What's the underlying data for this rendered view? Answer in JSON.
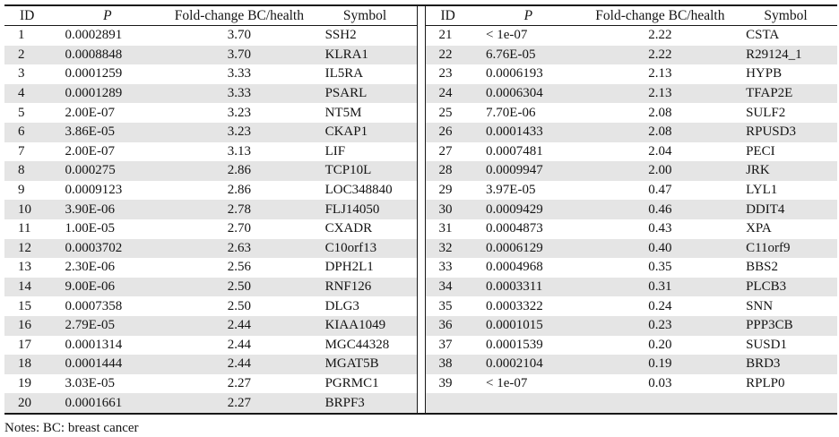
{
  "columns": [
    "ID",
    "P",
    "Fold-change BC/health",
    "Symbol"
  ],
  "left_table": {
    "rows": [
      [
        "1",
        "0.0002891",
        "3.70",
        "SSH2"
      ],
      [
        "2",
        "0.0008848",
        "3.70",
        "KLRA1"
      ],
      [
        "3",
        "0.0001259",
        "3.33",
        "IL5RA"
      ],
      [
        "4",
        "0.0001289",
        "3.33",
        "PSARL"
      ],
      [
        "5",
        "2.00E-07",
        "3.23",
        "NT5M"
      ],
      [
        "6",
        "3.86E-05",
        "3.23",
        "CKAP1"
      ],
      [
        "7",
        "2.00E-07",
        "3.13",
        "LIF"
      ],
      [
        "8",
        "0.000275",
        "2.86",
        "TCP10L"
      ],
      [
        "9",
        "0.0009123",
        "2.86",
        "LOC348840"
      ],
      [
        "10",
        "3.90E-06",
        "2.78",
        "FLJ14050"
      ],
      [
        "11",
        "1.00E-05",
        "2.70",
        "CXADR"
      ],
      [
        "12",
        "0.0003702",
        "2.63",
        "C10orf13"
      ],
      [
        "13",
        "2.30E-06",
        "2.56",
        "DPH2L1"
      ],
      [
        "14",
        "9.00E-06",
        "2.50",
        "RNF126"
      ],
      [
        "15",
        "0.0007358",
        "2.50",
        "DLG3"
      ],
      [
        "16",
        "2.79E-05",
        "2.44",
        "KIAA1049"
      ],
      [
        "17",
        "0.0001314",
        "2.44",
        "MGC44328"
      ],
      [
        "18",
        "0.0001444",
        "2.44",
        "MGAT5B"
      ],
      [
        "19",
        "3.03E-05",
        "2.27",
        "PGRMC1"
      ],
      [
        "20",
        "0.0001661",
        "2.27",
        "BRPF3"
      ]
    ]
  },
  "right_table": {
    "rows": [
      [
        "21",
        "< 1e-07",
        "2.22",
        "CSTA"
      ],
      [
        "22",
        "6.76E-05",
        "2.22",
        "R29124_1"
      ],
      [
        "23",
        "0.0006193",
        "2.13",
        "HYPB"
      ],
      [
        "24",
        "0.0006304",
        "2.13",
        "TFAP2E"
      ],
      [
        "25",
        "7.70E-06",
        "2.08",
        "SULF2"
      ],
      [
        "26",
        "0.0001433",
        "2.08",
        "RPUSD3"
      ],
      [
        "27",
        "0.0007481",
        "2.04",
        "PECI"
      ],
      [
        "28",
        "0.0009947",
        "2.00",
        "JRK"
      ],
      [
        "29",
        "3.97E-05",
        "0.47",
        "LYL1"
      ],
      [
        "30",
        "0.0009429",
        "0.46",
        "DDIT4"
      ],
      [
        "31",
        "0.0004873",
        "0.43",
        "XPA"
      ],
      [
        "32",
        "0.0006129",
        "0.40",
        "C11orf9"
      ],
      [
        "33",
        "0.0004968",
        "0.35",
        "BBS2"
      ],
      [
        "34",
        "0.0003311",
        "0.31",
        "PLCB3"
      ],
      [
        "35",
        "0.0003322",
        "0.24",
        "SNN"
      ],
      [
        "36",
        "0.0001015",
        "0.23",
        "PPP3CB"
      ],
      [
        "37",
        "0.0001539",
        "0.20",
        "SUSD1"
      ],
      [
        "38",
        "0.0002104",
        "0.19",
        "BRD3"
      ],
      [
        "39",
        "< 1e-07",
        "0.03",
        "RPLP0"
      ],
      [
        "",
        "",
        "",
        ""
      ]
    ]
  },
  "note": "Notes: BC: breast cancer",
  "colors": {
    "row_shade": "#e5e5e5",
    "border": "#181818",
    "text": "#141414"
  }
}
